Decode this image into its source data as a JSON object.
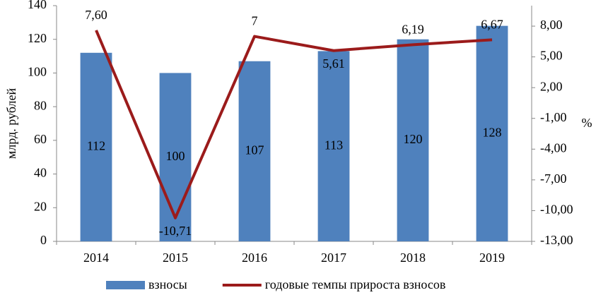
{
  "chart_data": {
    "type": "bar",
    "y_label": "млрд. рублей",
    "y2_label": "%",
    "categories": [
      "2014",
      "2015",
      "2016",
      "2017",
      "2018",
      "2019"
    ],
    "series": [
      {
        "name": "взносы",
        "type": "bar",
        "color": "#4f81bd",
        "values": [
          112,
          100,
          107,
          113,
          120,
          128
        ]
      },
      {
        "name": "годовые темпы прироста взносов",
        "type": "line",
        "axis": "y2",
        "color": "#9b1b1b",
        "values": [
          7.6,
          -10.71,
          7,
          5.61,
          6.19,
          6.67
        ],
        "value_labels": [
          "7,60",
          "-10,71",
          "7",
          "5,61",
          "6,19",
          "6,67"
        ]
      }
    ],
    "ylim": [
      0,
      140
    ],
    "yticks": [
      0,
      20,
      40,
      60,
      80,
      100,
      120,
      140
    ],
    "y2lim": [
      -13,
      10
    ],
    "y2ticks": [
      {
        "value": -13,
        "label": "-13,00"
      },
      {
        "value": -10,
        "label": "-10,00"
      },
      {
        "value": -7,
        "label": "-7,00"
      },
      {
        "value": -4,
        "label": "-4,00"
      },
      {
        "value": -1,
        "label": "-1,00"
      },
      {
        "value": 2,
        "label": "2,00"
      },
      {
        "value": 5,
        "label": "5,00"
      },
      {
        "value": 8,
        "label": "8,00"
      }
    ],
    "legend": "bottom"
  }
}
